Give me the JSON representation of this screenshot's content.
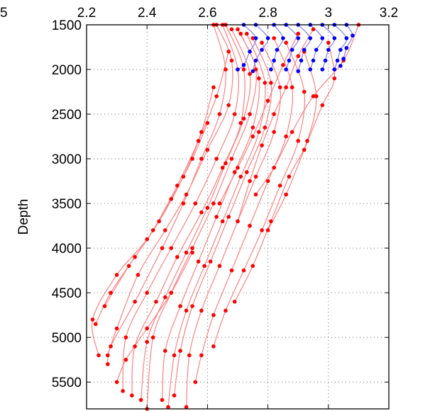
{
  "chart_data": {
    "type": "line",
    "title": "",
    "xlabel": "",
    "ylabel": "Depth",
    "xlim": [
      2.2,
      3.2
    ],
    "ylim": [
      1500,
      5800
    ],
    "y_reversed": true,
    "x_axis_position": "top",
    "grid": true,
    "x_ticks": [
      2.2,
      2.4,
      2.6,
      2.8,
      3,
      3.2
    ],
    "x_tick_labels": [
      "2.2",
      "2.4",
      "2.6",
      "2.8",
      "3",
      "3.2"
    ],
    "x_tick_labels_clipped": [
      "5"
    ],
    "y_ticks": [
      1500,
      2000,
      2500,
      3000,
      3500,
      4000,
      4500,
      5000,
      5500
    ],
    "y_tick_labels": [
      "1500",
      "2000",
      "2500",
      "3000",
      "3500",
      "4000",
      "4500",
      "5000",
      "5500"
    ],
    "series": [
      {
        "color": "#ff8080",
        "marker_color": "#ff0000",
        "curves": [
          [
            [
              2.62,
              1500
            ],
            [
              2.66,
              2000
            ],
            [
              2.64,
              2500
            ],
            [
              2.58,
              3000
            ],
            [
              2.52,
              3500
            ],
            [
              2.45,
              4000
            ],
            [
              2.36,
              4600
            ],
            [
              2.28,
              5100
            ],
            [
              2.27,
              5300
            ]
          ],
          [
            [
              2.63,
              1500
            ],
            [
              2.68,
              1900
            ],
            [
              2.67,
              2400
            ],
            [
              2.6,
              2900
            ],
            [
              2.53,
              3400
            ],
            [
              2.46,
              3800
            ],
            [
              2.37,
              4300
            ],
            [
              2.3,
              4900
            ],
            [
              2.27,
              5200
            ]
          ],
          [
            [
              2.65,
              1500
            ],
            [
              2.7,
              2000
            ],
            [
              2.69,
              2500
            ],
            [
              2.63,
              3000
            ],
            [
              2.56,
              3500
            ],
            [
              2.48,
              4000
            ],
            [
              2.4,
              4500
            ],
            [
              2.33,
              5000
            ],
            [
              2.32,
              5600
            ]
          ],
          [
            [
              2.66,
              1500
            ],
            [
              2.72,
              2000
            ],
            [
              2.71,
              2600
            ],
            [
              2.65,
              3100
            ],
            [
              2.58,
              3600
            ],
            [
              2.5,
              4100
            ],
            [
              2.43,
              4600
            ],
            [
              2.36,
              5100
            ],
            [
              2.35,
              5650
            ]
          ],
          [
            [
              2.68,
              1550
            ],
            [
              2.74,
              2050
            ],
            [
              2.72,
              2550
            ],
            [
              2.66,
              3050
            ],
            [
              2.6,
              3550
            ],
            [
              2.53,
              4050
            ],
            [
              2.46,
              4550
            ],
            [
              2.4,
              5050
            ],
            [
              2.38,
              5700
            ]
          ],
          [
            [
              2.7,
              1550
            ],
            [
              2.76,
              2000
            ],
            [
              2.74,
              2500
            ],
            [
              2.68,
              3000
            ],
            [
              2.62,
              3500
            ],
            [
              2.55,
              4000
            ],
            [
              2.48,
              4500
            ],
            [
              2.42,
              5000
            ],
            [
              2.4,
              5800
            ]
          ],
          [
            [
              2.71,
              1600
            ],
            [
              2.77,
              2100
            ],
            [
              2.75,
              2650
            ],
            [
              2.69,
              3150
            ],
            [
              2.63,
              3650
            ],
            [
              2.57,
              4150
            ],
            [
              2.51,
              4650
            ],
            [
              2.46,
              5150
            ],
            [
              2.45,
              5700
            ]
          ],
          [
            [
              2.73,
              1600
            ],
            [
              2.79,
              2150
            ],
            [
              2.77,
              2700
            ],
            [
              2.71,
              3200
            ],
            [
              2.65,
              3700
            ],
            [
              2.59,
              4200
            ],
            [
              2.53,
              4700
            ],
            [
              2.49,
              5200
            ],
            [
              2.47,
              5780
            ]
          ],
          [
            [
              2.75,
              1650
            ],
            [
              2.81,
              2150
            ],
            [
              2.79,
              2650
            ],
            [
              2.73,
              3150
            ],
            [
              2.67,
              3650
            ],
            [
              2.61,
              4150
            ],
            [
              2.55,
              4650
            ],
            [
              2.51,
              5150
            ],
            [
              2.49,
              5650
            ]
          ],
          [
            [
              2.78,
              1700
            ],
            [
              2.84,
              2200
            ],
            [
              2.82,
              2700
            ],
            [
              2.76,
              3200
            ],
            [
              2.7,
              3700
            ],
            [
              2.64,
              4200
            ],
            [
              2.58,
              4700
            ],
            [
              2.54,
              5200
            ],
            [
              2.53,
              5780
            ]
          ],
          [
            [
              2.82,
              1650
            ],
            [
              2.88,
              2200
            ],
            [
              2.86,
              2750
            ],
            [
              2.8,
              3250
            ],
            [
              2.74,
              3750
            ],
            [
              2.68,
              4250
            ],
            [
              2.62,
              4750
            ],
            [
              2.58,
              5200
            ],
            [
              2.56,
              5500
            ]
          ],
          [
            [
              2.86,
              1700
            ],
            [
              2.92,
              2250
            ],
            [
              2.9,
              2800
            ],
            [
              2.84,
              3300
            ],
            [
              2.78,
              3800
            ],
            [
              2.72,
              4250
            ],
            [
              2.66,
              4700
            ],
            [
              2.62,
              5100
            ]
          ],
          [
            [
              2.92,
              1800
            ],
            [
              2.96,
              2300
            ],
            [
              2.93,
              2800
            ],
            [
              2.87,
              3200
            ],
            [
              2.81,
              3700
            ],
            [
              2.75,
              4200
            ],
            [
              2.69,
              4600
            ]
          ],
          [
            [
              3.0,
              1700
            ],
            [
              3.02,
              2100
            ],
            [
              2.98,
              2400
            ],
            [
              2.92,
              2900
            ],
            [
              2.86,
              3400
            ],
            [
              2.8,
              3800
            ]
          ],
          [
            [
              3.1,
              1500
            ],
            [
              3.05,
              1900
            ],
            [
              2.95,
              2300
            ],
            [
              2.88,
              2700
            ],
            [
              2.82,
              3100
            ],
            [
              2.76,
              3400
            ]
          ],
          [
            [
              2.55,
              4050
            ],
            [
              2.48,
              4500
            ],
            [
              2.4,
              4900
            ],
            [
              2.33,
              5250
            ],
            [
              2.3,
              5500
            ]
          ],
          [
            [
              2.6,
              2600
            ],
            [
              2.55,
              3000
            ],
            [
              2.48,
              3450
            ],
            [
              2.4,
              3900
            ],
            [
              2.3,
              4300
            ],
            [
              2.22,
              4800
            ],
            [
              2.24,
              5200
            ]
          ],
          [
            [
              2.62,
              2200
            ],
            [
              2.58,
              2700
            ],
            [
              2.52,
              3200
            ],
            [
              2.44,
              3700
            ],
            [
              2.36,
              4100
            ],
            [
              2.28,
              4500
            ],
            [
              2.23,
              4850
            ]
          ],
          [
            [
              2.67,
              1800
            ],
            [
              2.63,
              2300
            ],
            [
              2.57,
              2800
            ],
            [
              2.5,
              3300
            ],
            [
              2.42,
              3800
            ],
            [
              2.34,
              4200
            ],
            [
              2.26,
              4650
            ]
          ],
          [
            [
              2.9,
              1600
            ],
            [
              2.85,
              1950
            ],
            [
              2.8,
              2350
            ],
            [
              2.75,
              2750
            ],
            [
              2.7,
              3100
            ],
            [
              2.64,
              3500
            ]
          ],
          [
            [
              2.95,
              1550
            ],
            [
              2.9,
              1850
            ],
            [
              2.86,
              2200
            ],
            [
              2.82,
              2500
            ],
            [
              2.78,
              2850
            ],
            [
              2.74,
              3250
            ],
            [
              2.7,
              3700
            ]
          ]
        ]
      },
      {
        "color": "#8080ff",
        "marker_color": "#0000ff",
        "curves": [
          [
            [
              2.72,
              1500
            ],
            [
              2.76,
              1650
            ],
            [
              2.74,
              1800
            ],
            [
              2.72,
              1950
            ],
            [
              2.7,
              2000
            ]
          ],
          [
            [
              2.76,
              1500
            ],
            [
              2.8,
              1650
            ],
            [
              2.78,
              1780
            ],
            [
              2.76,
              1900
            ],
            [
              2.75,
              2020
            ]
          ],
          [
            [
              2.82,
              1500
            ],
            [
              2.85,
              1650
            ],
            [
              2.83,
              1780
            ],
            [
              2.82,
              1900
            ],
            [
              2.81,
              2000
            ]
          ],
          [
            [
              2.86,
              1500
            ],
            [
              2.9,
              1650
            ],
            [
              2.88,
              1780
            ],
            [
              2.87,
              1900
            ],
            [
              2.86,
              2000
            ]
          ],
          [
            [
              2.9,
              1500
            ],
            [
              2.94,
              1650
            ],
            [
              2.92,
              1780
            ],
            [
              2.91,
              1900
            ],
            [
              2.9,
              2020
            ]
          ],
          [
            [
              2.94,
              1500
            ],
            [
              2.98,
              1650
            ],
            [
              2.96,
              1780
            ],
            [
              2.95,
              1900
            ],
            [
              2.94,
              2000
            ]
          ],
          [
            [
              2.98,
              1500
            ],
            [
              3.02,
              1650
            ],
            [
              3.0,
              1780
            ],
            [
              2.99,
              1900
            ],
            [
              2.98,
              2000
            ]
          ],
          [
            [
              3.02,
              1500
            ],
            [
              3.06,
              1650
            ],
            [
              3.04,
              1780
            ],
            [
              3.03,
              1900
            ],
            [
              3.02,
              2000
            ]
          ],
          [
            [
              3.06,
              1500
            ],
            [
              3.08,
              1620
            ],
            [
              3.06,
              1760
            ],
            [
              3.05,
              1880
            ],
            [
              3.04,
              1960
            ]
          ]
        ]
      }
    ]
  }
}
